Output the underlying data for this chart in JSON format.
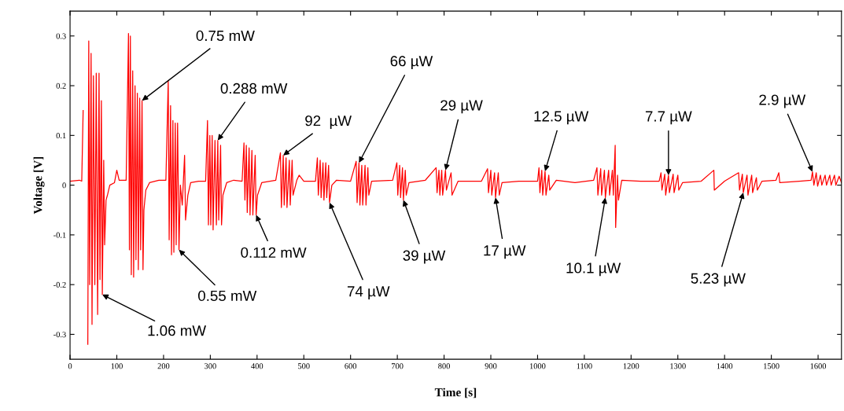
{
  "chart_data": {
    "type": "line",
    "xlabel": "Time [s]",
    "ylabel": "Voltage [V]",
    "color": "#ff0000",
    "grid": false,
    "marker": "none",
    "line_style": "solid",
    "xlim": [
      0,
      1650
    ],
    "ylim": [
      -0.35,
      0.35
    ],
    "xticks": [
      0,
      100,
      200,
      300,
      400,
      500,
      600,
      700,
      800,
      900,
      1000,
      1100,
      1200,
      1300,
      1400,
      1500,
      1600
    ],
    "yticks": [
      -0.3,
      -0.2,
      -0.1,
      0,
      0.1,
      0.2,
      0.3
    ],
    "x": [
      0,
      20,
      25,
      28,
      30,
      32,
      35,
      38,
      40,
      42,
      45,
      47,
      50,
      53,
      56,
      59,
      62,
      64,
      67,
      69,
      72,
      74,
      77,
      80,
      85,
      95,
      100,
      105,
      120,
      125,
      127,
      129,
      131,
      134,
      136,
      139,
      141,
      144,
      146,
      149,
      151,
      154,
      156,
      158,
      162,
      170,
      190,
      205,
      210,
      212,
      215,
      217,
      220,
      222,
      225,
      227,
      230,
      233,
      236,
      240,
      245,
      247,
      252,
      258,
      275,
      290,
      294,
      296,
      299,
      301,
      304,
      306,
      310,
      313,
      316,
      318,
      322,
      324,
      327,
      335,
      350,
      368,
      372,
      374,
      377,
      379,
      383,
      385,
      389,
      391,
      396,
      398,
      401,
      410,
      440,
      450,
      452,
      456,
      458,
      462,
      464,
      469,
      471,
      475,
      477,
      485,
      490,
      500,
      525,
      529,
      531,
      535,
      537,
      541,
      543,
      547,
      549,
      553,
      555,
      560,
      570,
      600,
      612,
      614,
      618,
      620,
      624,
      626,
      631,
      633,
      637,
      639,
      645,
      690,
      699,
      701,
      705,
      707,
      711,
      713,
      717,
      719,
      725,
      760,
      783,
      785,
      789,
      791,
      795,
      797,
      803,
      805,
      815,
      817,
      830,
      880,
      893,
      895,
      900,
      902,
      908,
      910,
      916,
      918,
      924,
      960,
      1000,
      1003,
      1005,
      1009,
      1011,
      1016,
      1018,
      1024,
      1026,
      1040,
      1080,
      1120,
      1127,
      1129,
      1135,
      1137,
      1143,
      1145,
      1152,
      1154,
      1160,
      1162,
      1166,
      1167,
      1171,
      1173,
      1180,
      1220,
      1260,
      1264,
      1266,
      1272,
      1274,
      1280,
      1282,
      1290,
      1292,
      1300,
      1302,
      1310,
      1350,
      1377,
      1378,
      1400,
      1430,
      1432,
      1438,
      1440,
      1448,
      1450,
      1458,
      1460,
      1468,
      1470,
      1480,
      1510,
      1516,
      1518,
      1560,
      1585,
      1588,
      1591,
      1596,
      1599,
      1605,
      1608,
      1615,
      1618,
      1625,
      1628,
      1635,
      1638,
      1645,
      1650
    ],
    "values": [
      0.008,
      0.01,
      0.008,
      0.15,
      null,
      -0.28,
      null,
      -0.32,
      0.29,
      -0.2,
      0.265,
      -0.28,
      0.22,
      -0.2,
      0.225,
      -0.26,
      0.225,
      -0.19,
      0.17,
      -0.22,
      0.05,
      -0.12,
      -0.03,
      -0.02,
      0.0,
      0.005,
      0.03,
      0.01,
      0.01,
      0.305,
      -0.13,
      0.3,
      -0.18,
      0.23,
      -0.185,
      0.2,
      -0.15,
      0.185,
      -0.17,
      0.175,
      -0.13,
      0.17,
      -0.17,
      -0.05,
      -0.01,
      0.005,
      0.01,
      0.01,
      0.21,
      -0.11,
      0.16,
      -0.14,
      0.13,
      -0.135,
      0.125,
      -0.12,
      0.125,
      -0.13,
      0.0,
      -0.04,
      0.06,
      -0.07,
      -0.02,
      0.005,
      0.008,
      0.008,
      0.13,
      -0.08,
      0.1,
      -0.08,
      0.1,
      -0.09,
      0.09,
      -0.08,
      0.09,
      -0.07,
      0.08,
      -0.08,
      -0.02,
      0.005,
      0.01,
      0.008,
      0.085,
      -0.03,
      0.08,
      -0.055,
      0.075,
      -0.06,
      0.07,
      -0.06,
      0.06,
      -0.06,
      -0.02,
      0.005,
      0.01,
      0.065,
      -0.045,
      0.06,
      -0.04,
      0.055,
      -0.045,
      0.05,
      -0.04,
      0.05,
      -0.02,
      0.01,
      0.02,
      0.008,
      0.008,
      0.055,
      -0.02,
      0.05,
      -0.025,
      0.045,
      -0.03,
      0.045,
      -0.025,
      0.04,
      -0.035,
      0.0,
      0.01,
      0.008,
      0.048,
      -0.035,
      0.045,
      -0.04,
      0.04,
      -0.04,
      0.04,
      -0.04,
      0.035,
      -0.02,
      0.008,
      0.01,
      0.045,
      -0.02,
      0.04,
      -0.025,
      0.035,
      -0.03,
      0.03,
      -0.02,
      0.005,
      0.01,
      0.035,
      -0.015,
      0.03,
      -0.02,
      0.03,
      -0.02,
      0.03,
      -0.01,
      0.025,
      -0.02,
      0.008,
      0.008,
      0.033,
      -0.015,
      0.03,
      -0.02,
      0.025,
      -0.025,
      0.025,
      -0.02,
      0.005,
      0.008,
      0.008,
      0.035,
      -0.015,
      0.03,
      -0.02,
      0.028,
      -0.02,
      0.02,
      -0.01,
      0.01,
      0.005,
      0.01,
      0.035,
      -0.02,
      0.033,
      -0.02,
      0.03,
      -0.025,
      0.03,
      -0.02,
      0.03,
      -0.02,
      0.08,
      -0.085,
      0.02,
      -0.03,
      0.01,
      0.008,
      0.008,
      0.025,
      -0.01,
      0.022,
      -0.02,
      0.02,
      -0.015,
      0.022,
      -0.015,
      0.02,
      -0.01,
      0.005,
      0.008,
      0.03,
      -0.01,
      0.008,
      0.025,
      -0.01,
      0.022,
      -0.015,
      0.02,
      -0.02,
      0.02,
      -0.015,
      0.015,
      -0.01,
      0.008,
      0.01,
      0.025,
      0.005,
      0.008,
      0.01,
      0.027,
      0.0,
      0.025,
      -0.002,
      0.02,
      0.0,
      0.02,
      0.0,
      0.02,
      0.0,
      0.02,
      0.0,
      0.018,
      0.005
    ],
    "annotations": [
      {
        "text": "1.06 mW",
        "x": 69,
        "y": -0.22
      },
      {
        "text": "0.75 mW",
        "x": 154,
        "y": 0.17
      },
      {
        "text": "0.288 mW",
        "x": 316,
        "y": 0.09
      },
      {
        "text": "92  µW",
        "x": 456,
        "y": 0.06
      },
      {
        "text": "66 µW",
        "x": 618,
        "y": 0.045
      },
      {
        "text": "29 µW",
        "x": 803,
        "y": 0.03
      },
      {
        "text": "12.5 µW",
        "x": 1016,
        "y": 0.028
      },
      {
        "text": "7.7 µW",
        "x": 1280,
        "y": 0.02
      },
      {
        "text": "2.9 µW",
        "x": 1588,
        "y": 0.027
      },
      {
        "text": "0.112 mW",
        "x": 398,
        "y": -0.06
      },
      {
        "text": "0.55 mW",
        "x": 233,
        "y": -0.13
      },
      {
        "text": "74 µW",
        "x": 555,
        "y": -0.035
      },
      {
        "text": "39 µW",
        "x": 713,
        "y": -0.03
      },
      {
        "text": "17 µW",
        "x": 910,
        "y": -0.025
      },
      {
        "text": "10.1 µW",
        "x": 1145,
        "y": -0.025
      },
      {
        "text": "5.23 µW",
        "x": 1440,
        "y": -0.015
      }
    ]
  }
}
